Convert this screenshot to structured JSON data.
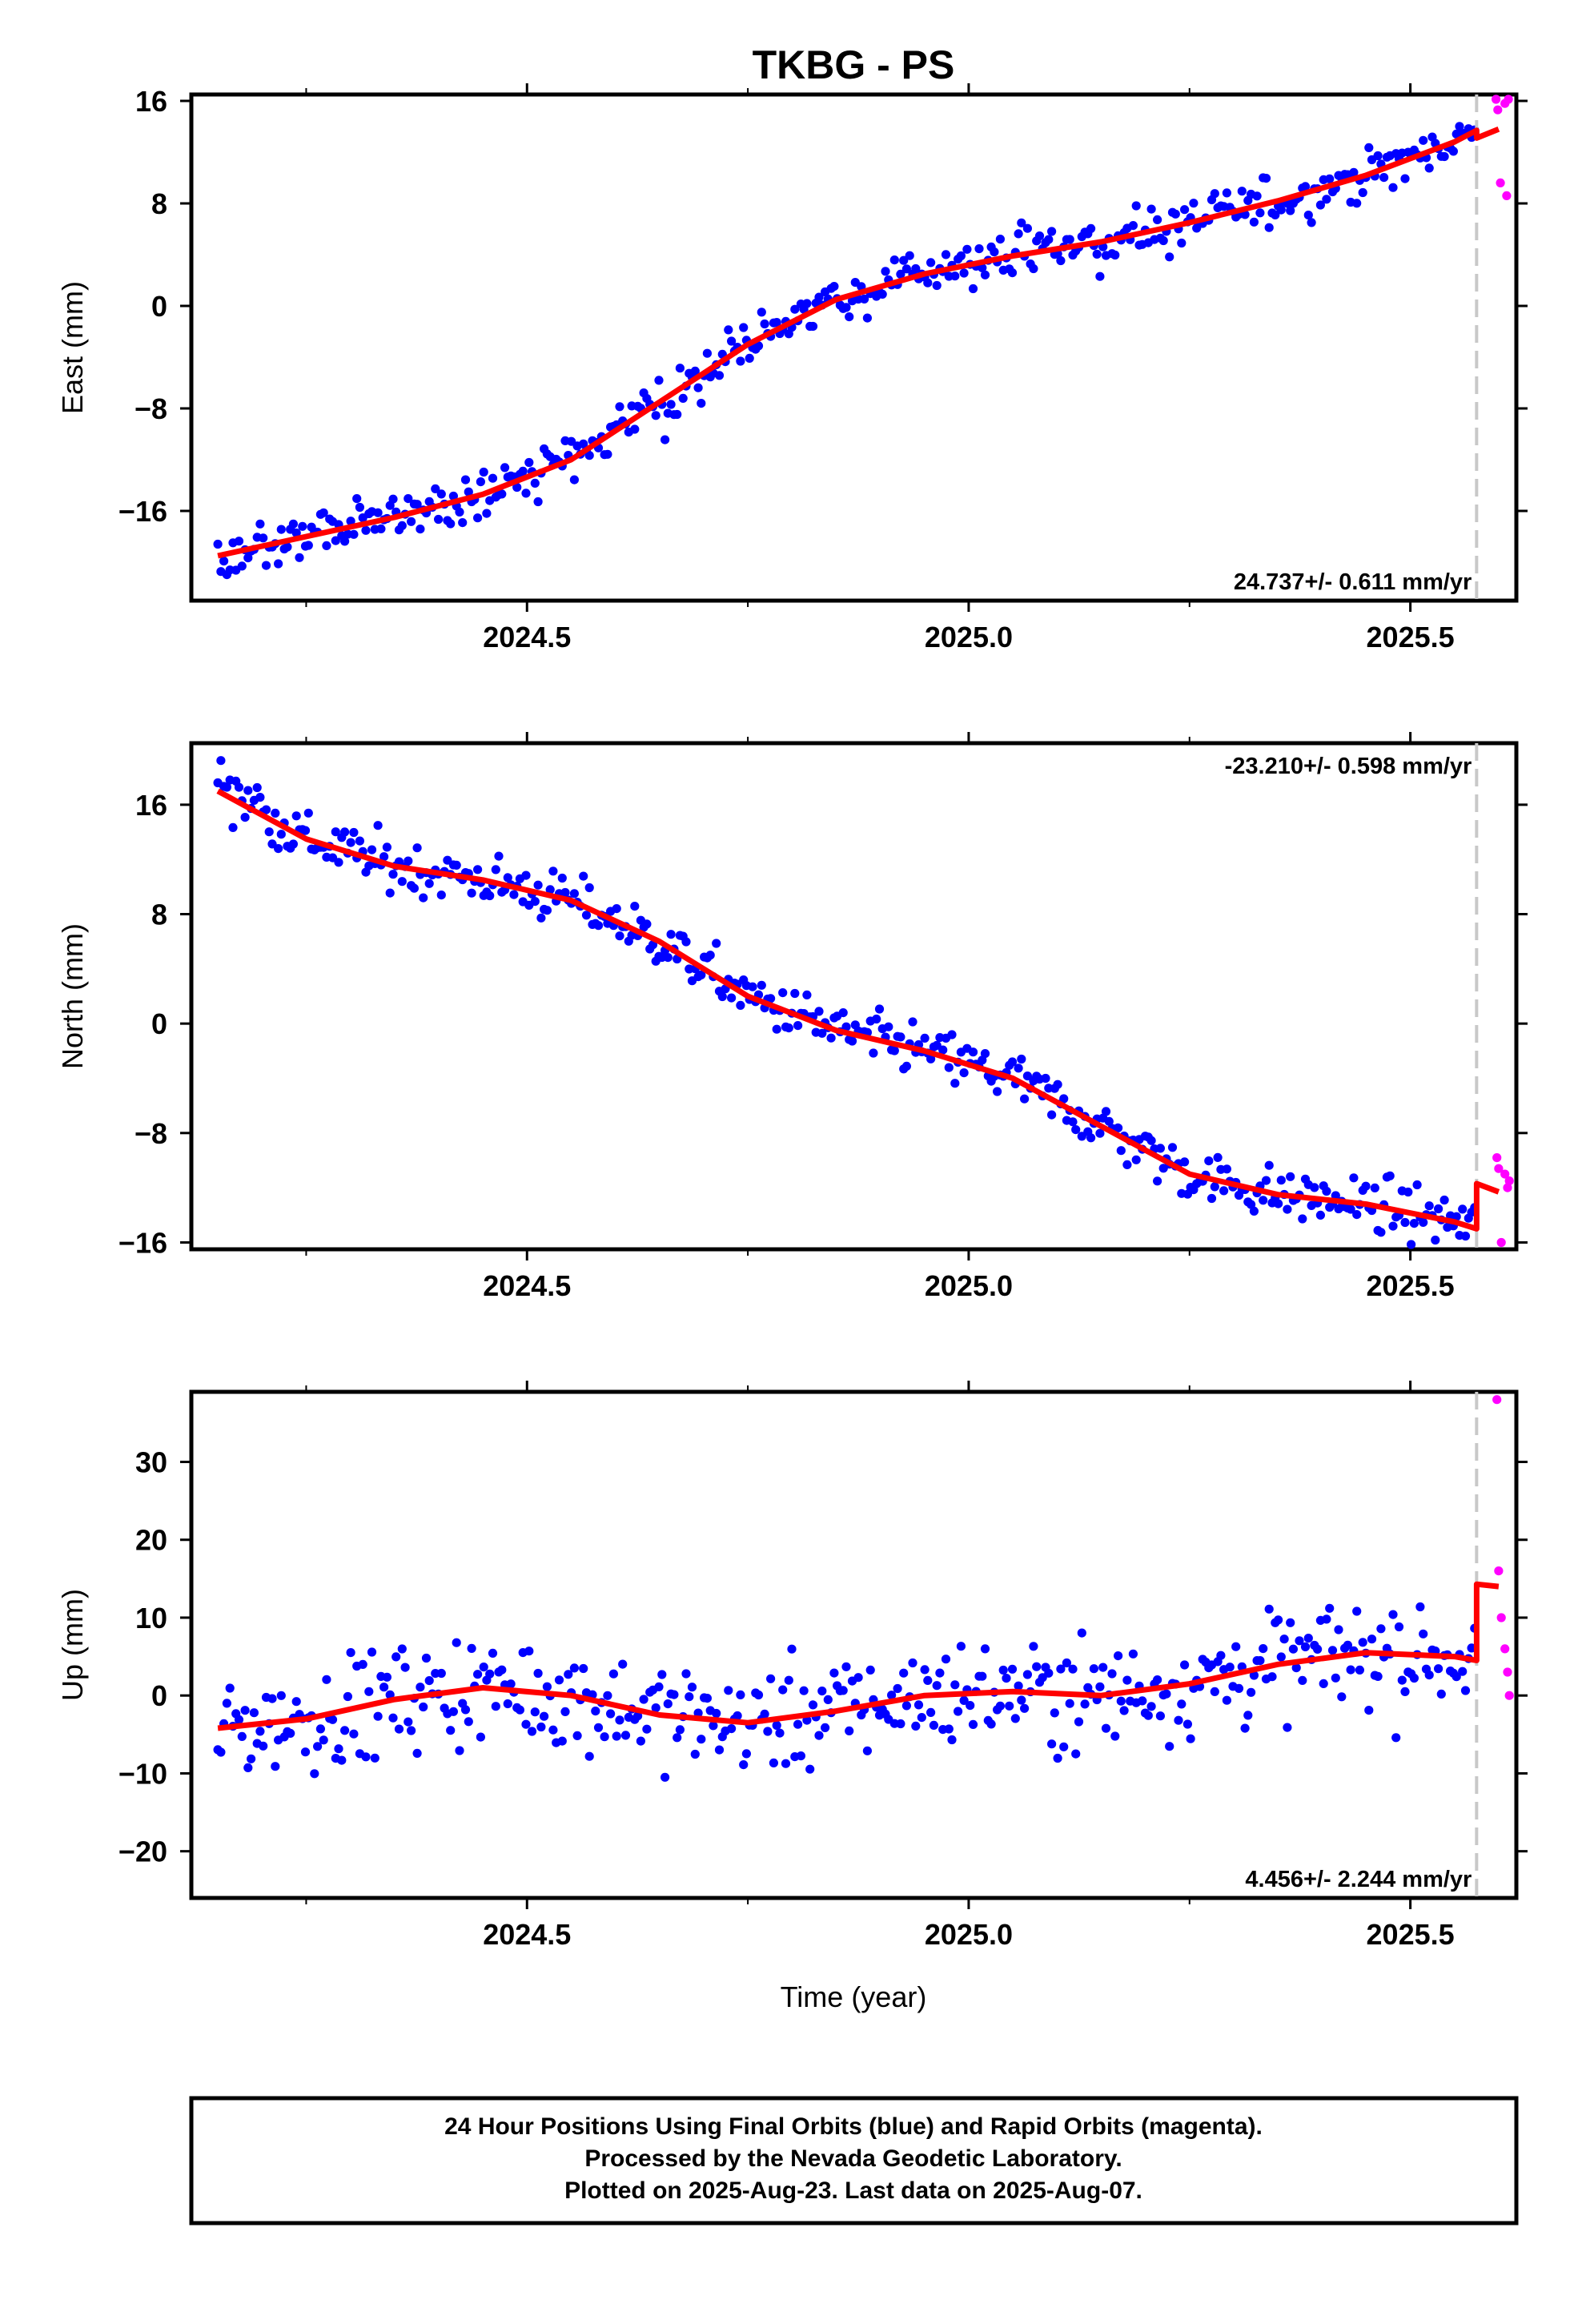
{
  "chart_data": {
    "title": "TKBG - PS",
    "xlabel": "Time (year)",
    "xlim": [
      2024.12,
      2025.62
    ],
    "xticks": [
      "2024.5",
      "2025.0",
      "2025.5"
    ],
    "colors": {
      "final": "#0000ff",
      "rapid": "#ff00ff",
      "model": "#ff0000",
      "offset_line": "#c8c8c8"
    },
    "last_final_epoch": 2025.575,
    "panels": [
      {
        "name": "east",
        "type": "scatter",
        "ylabel": "East (mm)",
        "ylim": [
          -23,
          16.5
        ],
        "yticks": [
          "16",
          "8",
          "0",
          "−8",
          "−16"
        ],
        "rate_text": "24.737+/- 0.611 mm/yr",
        "rate_position": "bottom-right",
        "model_line": {
          "x": [
            2024.15,
            2024.25,
            2024.35,
            2024.45,
            2024.55,
            2024.65,
            2024.75,
            2024.85,
            2024.95,
            2025.05,
            2025.15,
            2025.25,
            2025.35,
            2025.45,
            2025.55,
            2025.575
          ],
          "y": [
            -19.5,
            -18,
            -16.5,
            -14.7,
            -12,
            -7.5,
            -3,
            0.5,
            2.5,
            3.9,
            5,
            6.5,
            8.2,
            10.2,
            12.8,
            13.7
          ]
        },
        "model_step": {
          "x": [
            2025.575,
            2025.6
          ],
          "y": [
            13.1,
            13.8
          ]
        },
        "rapid_points": {
          "x": [
            2025.597,
            2025.599,
            2025.602,
            2025.607,
            2025.609,
            2025.611
          ],
          "y": [
            16.3,
            15.3,
            9.6,
            15.8,
            8.6,
            16.7
          ]
        }
      },
      {
        "name": "north",
        "type": "scatter",
        "ylabel": "North (mm)",
        "ylim": [
          -16.5,
          20.5
        ],
        "yticks": [
          "16",
          "8",
          "0",
          "−8",
          "−16"
        ],
        "rate_text": "-23.210+/- 0.598 mm/yr",
        "rate_position": "top-right",
        "model_line": {
          "x": [
            2024.15,
            2024.25,
            2024.35,
            2024.45,
            2024.55,
            2024.65,
            2024.75,
            2024.85,
            2024.95,
            2025.05,
            2025.15,
            2025.25,
            2025.35,
            2025.45,
            2025.55,
            2025.575
          ],
          "y": [
            17,
            13.5,
            11.5,
            10.5,
            9,
            6,
            2,
            -0.5,
            -2,
            -4,
            -7.5,
            -11,
            -12.5,
            -13.2,
            -14.5,
            -15
          ]
        },
        "model_step": {
          "x": [
            2025.575,
            2025.6
          ],
          "y": [
            -11.7,
            -12.3
          ]
        },
        "rapid_points": {
          "x": [
            2025.598,
            2025.6,
            2025.603,
            2025.607,
            2025.61,
            2025.612
          ],
          "y": [
            -9.8,
            -10.6,
            -16,
            -11,
            -12,
            -11.5
          ]
        }
      },
      {
        "name": "up",
        "type": "scatter",
        "ylabel": "Up (mm)",
        "ylim": [
          -26,
          39
        ],
        "yticks": [
          "30",
          "20",
          "10",
          "0",
          "−10",
          "−20"
        ],
        "rate_text": "4.456+/- 2.244 mm/yr",
        "rate_position": "bottom-right",
        "model_line": {
          "x": [
            2024.15,
            2024.25,
            2024.35,
            2024.45,
            2024.55,
            2024.65,
            2024.75,
            2024.85,
            2024.95,
            2025.05,
            2025.15,
            2025.25,
            2025.35,
            2025.45,
            2025.55,
            2025.575
          ],
          "y": [
            -4.2,
            -3,
            -0.5,
            1,
            0,
            -2.5,
            -3.5,
            -2,
            0,
            0.5,
            0,
            1.5,
            4,
            5.5,
            5,
            4.5
          ]
        },
        "model_step": {
          "x": [
            2025.575,
            2025.6
          ],
          "y": [
            14.3,
            14
          ]
        },
        "rapid_points": {
          "x": [
            2025.598,
            2025.6,
            2025.603,
            2025.607,
            2025.61,
            2025.612
          ],
          "y": [
            38,
            16,
            10,
            6,
            3,
            0
          ]
        }
      }
    ]
  },
  "footer": {
    "line1": "24 Hour Positions Using Final Orbits (blue) and Rapid Orbits (magenta).",
    "line2": "Processed by the Nevada Geodetic Laboratory.",
    "line3": "Plotted on 2025-Aug-23. Last data on 2025-Aug-07."
  }
}
